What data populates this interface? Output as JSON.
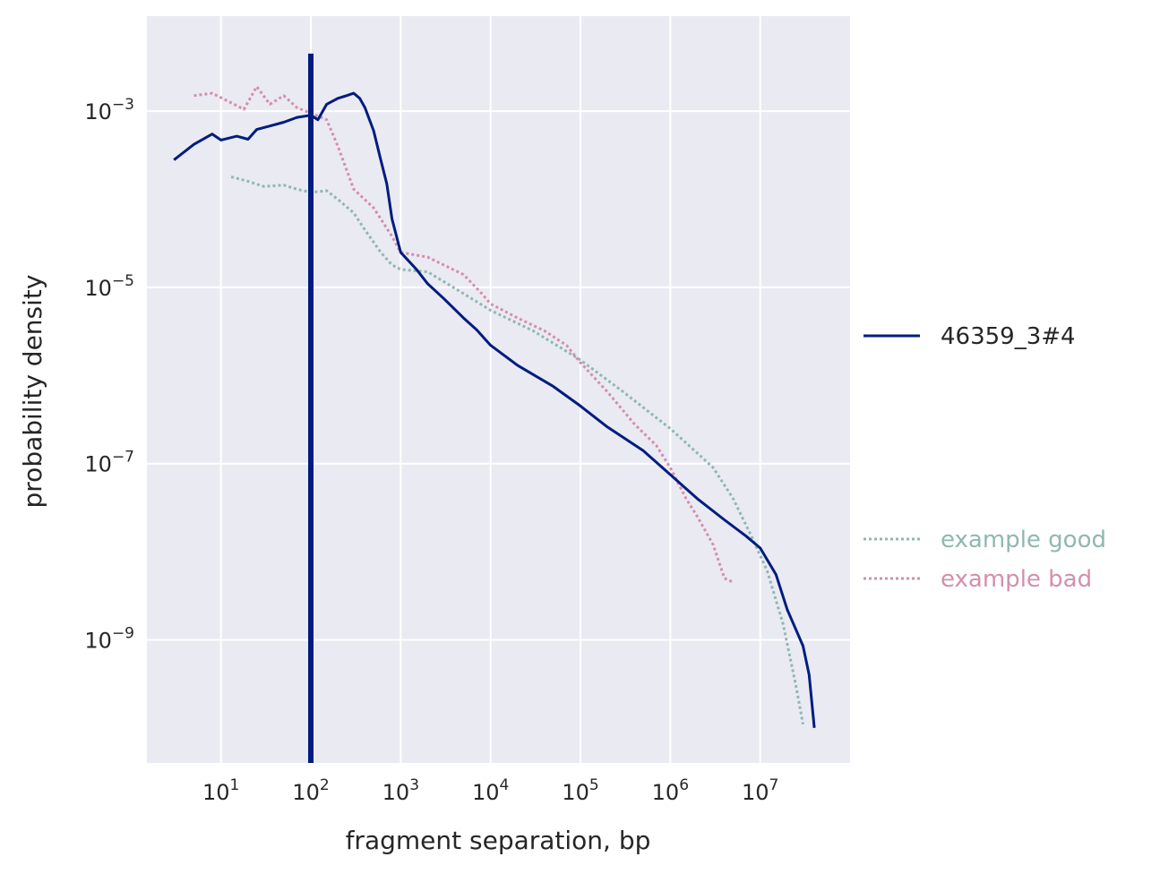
{
  "chart_data": {
    "type": "line",
    "xlabel": "fragment separation, bp",
    "ylabel": "probability density",
    "x_scale": "log",
    "y_scale": "log",
    "xlim": [
      1.5,
      100000000
    ],
    "ylim": [
      4e-11,
      0.012
    ],
    "x_ticks": [
      {
        "value": 10,
        "base": "10",
        "exp": "1"
      },
      {
        "value": 100,
        "base": "10",
        "exp": "2"
      },
      {
        "value": 1000,
        "base": "10",
        "exp": "3"
      },
      {
        "value": 10000,
        "base": "10",
        "exp": "4"
      },
      {
        "value": 100000,
        "base": "10",
        "exp": "5"
      },
      {
        "value": 1000000,
        "base": "10",
        "exp": "6"
      },
      {
        "value": 10000000,
        "base": "10",
        "exp": "7"
      }
    ],
    "y_ticks": [
      {
        "value": 0.001,
        "base": "10",
        "exp": "−3"
      },
      {
        "value": 1e-05,
        "base": "10",
        "exp": "−5"
      },
      {
        "value": 1e-07,
        "base": "10",
        "exp": "−7"
      },
      {
        "value": 1e-09,
        "base": "10",
        "exp": "−9"
      }
    ],
    "grid": true,
    "background": "#eaeaf2",
    "vertical_marker": {
      "x": 100,
      "color": "#001c7f"
    },
    "series": [
      {
        "name": "46359_3#4",
        "color": "#001c7f",
        "style": "solid",
        "points": [
          [
            3,
            0.00028
          ],
          [
            5,
            0.00042
          ],
          [
            8,
            0.00055
          ],
          [
            10,
            0.00047
          ],
          [
            15,
            0.00052
          ],
          [
            20,
            0.00048
          ],
          [
            25,
            0.00062
          ],
          [
            35,
            0.00068
          ],
          [
            50,
            0.00075
          ],
          [
            70,
            0.00085
          ],
          [
            100,
            0.0009
          ],
          [
            120,
            0.0008
          ],
          [
            150,
            0.0012
          ],
          [
            200,
            0.0014
          ],
          [
            250,
            0.0015
          ],
          [
            300,
            0.0016
          ],
          [
            350,
            0.0014
          ],
          [
            400,
            0.0011
          ],
          [
            500,
            0.0006
          ],
          [
            600,
            0.00028
          ],
          [
            700,
            0.00015
          ],
          [
            800,
            6e-05
          ],
          [
            1000,
            2.5e-05
          ],
          [
            1500,
            1.6e-05
          ],
          [
            2000,
            1.1e-05
          ],
          [
            3000,
            7.5e-06
          ],
          [
            5000,
            4.5e-06
          ],
          [
            7000,
            3.3e-06
          ],
          [
            10000,
            2.2e-06
          ],
          [
            20000,
            1.3e-06
          ],
          [
            50000,
            7.5e-07
          ],
          [
            100000,
            4.5e-07
          ],
          [
            200000,
            2.6e-07
          ],
          [
            500000,
            1.4e-07
          ],
          [
            1000000,
            7.5e-08
          ],
          [
            2000000,
            4e-08
          ],
          [
            4000000,
            2.3e-08
          ],
          [
            7000000,
            1.5e-08
          ],
          [
            10000000,
            1.1e-08
          ],
          [
            15000000,
            5.5e-09
          ],
          [
            20000000,
            2.2e-09
          ],
          [
            30000000,
            8.5e-10
          ],
          [
            35000000,
            4e-10
          ],
          [
            40000000,
            1e-10
          ]
        ]
      },
      {
        "name": "example good",
        "color": "#8fb8b0",
        "style": "dotted",
        "points": [
          [
            13,
            0.00018
          ],
          [
            20,
            0.00016
          ],
          [
            30,
            0.00014
          ],
          [
            50,
            0.000145
          ],
          [
            70,
            0.00013
          ],
          [
            100,
            0.00012
          ],
          [
            150,
            0.000125
          ],
          [
            200,
            0.0001
          ],
          [
            300,
            7e-05
          ],
          [
            400,
            4.5e-05
          ],
          [
            600,
            2.5e-05
          ],
          [
            800,
            1.8e-05
          ],
          [
            1000,
            1.6e-05
          ],
          [
            2000,
            1.5e-05
          ],
          [
            5000,
            8.5e-06
          ],
          [
            10000,
            5.5e-06
          ],
          [
            30000,
            3.2e-06
          ],
          [
            100000,
            1.5e-06
          ],
          [
            300000,
            6.5e-07
          ],
          [
            1000000,
            2.5e-07
          ],
          [
            3000000,
            9e-08
          ],
          [
            5000000,
            4e-08
          ],
          [
            8000000,
            1.5e-08
          ],
          [
            12000000,
            6e-09
          ],
          [
            18000000,
            1.5e-09
          ],
          [
            25000000,
            3e-10
          ],
          [
            30000000,
            1.1e-10
          ]
        ]
      },
      {
        "name": "example bad",
        "color": "#d38fad",
        "style": "dotted",
        "points": [
          [
            5,
            0.0015
          ],
          [
            8,
            0.0016
          ],
          [
            12,
            0.0013
          ],
          [
            18,
            0.00105
          ],
          [
            25,
            0.0019
          ],
          [
            35,
            0.0012
          ],
          [
            50,
            0.0015
          ],
          [
            70,
            0.0011
          ],
          [
            100,
            0.00095
          ],
          [
            150,
            0.0008
          ],
          [
            200,
            0.0004
          ],
          [
            300,
            0.00013
          ],
          [
            500,
            8e-05
          ],
          [
            800,
            3.8e-05
          ],
          [
            1000,
            2.5e-05
          ],
          [
            2000,
            2.2e-05
          ],
          [
            3000,
            1.8e-05
          ],
          [
            5000,
            1.4e-05
          ],
          [
            8000,
            8.5e-06
          ],
          [
            10000,
            6.5e-06
          ],
          [
            20000,
            4.5e-06
          ],
          [
            40000,
            3.2e-06
          ],
          [
            70000,
            2.2e-06
          ],
          [
            100000,
            1.4e-06
          ],
          [
            200000,
            6.5e-07
          ],
          [
            400000,
            2.8e-07
          ],
          [
            700000,
            1.6e-07
          ],
          [
            1000000,
            9e-08
          ],
          [
            1500000,
            4e-08
          ],
          [
            2000000,
            2.5e-08
          ],
          [
            3000000,
            1.2e-08
          ],
          [
            4000000,
            5e-09
          ],
          [
            5000000,
            4.5e-09
          ]
        ]
      }
    ],
    "legend": [
      {
        "label": "46359_3#4",
        "color": "#001c7f",
        "style": "solid",
        "position": "right-middle"
      },
      {
        "label": "example good",
        "color": "#8fb8b0",
        "style": "dotted",
        "position": "right-lower"
      },
      {
        "label": "example bad",
        "color": "#d38fad",
        "style": "dotted",
        "position": "right-lower"
      }
    ]
  }
}
